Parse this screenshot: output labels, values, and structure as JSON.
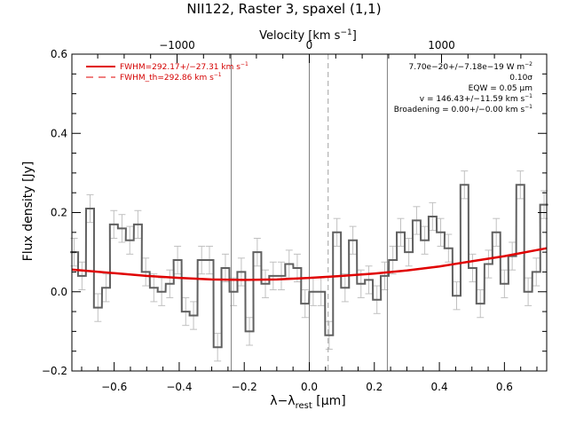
{
  "chart_data": {
    "type": "line",
    "title": "NII122, Raster 3, spaxel (1,1)",
    "xlabel": "λ−λ_rest [μm]",
    "xlabel_main": "λ−λ",
    "xlabel_sub": "rest",
    "xlabel_unit": " [μm]",
    "ylabel": "Flux density [Jy]",
    "top_xlabel": "Velocity [km s⁻¹]",
    "top_xlabel_main": "Velocity [km s",
    "top_xlabel_exp": "−1",
    "top_xlabel_end": "]",
    "xlim": [
      -0.73,
      0.73
    ],
    "ylim": [
      -0.2,
      0.6
    ],
    "xticks": [
      -0.6,
      -0.4,
      -0.2,
      0.0,
      0.2,
      0.4,
      0.6
    ],
    "xticklabels": [
      "−0.6",
      "−0.4",
      "−0.2",
      "0.0",
      "0.2",
      "0.4",
      "0.6"
    ],
    "yticks": [
      -0.2,
      0.0,
      0.2,
      0.4,
      0.6
    ],
    "yticklabels": [
      "−0.2",
      "0.0",
      "0.2",
      "0.4",
      "0.6"
    ],
    "top_ticks": [
      -1000,
      0,
      1000
    ],
    "top_ticklabels": [
      "−1000",
      "0",
      "1000"
    ],
    "top_axis_wavelength": 121.9,
    "grid": false,
    "legend_position": "top-left",
    "annotation_position": "top-right",
    "colors": {
      "data": "#606060",
      "errorbars": "#c0c0c0",
      "fit": "#e00000",
      "vlines": "#808080",
      "text_red": "#d40000"
    },
    "legend": [
      {
        "label": "FWHM=292.17+/−27.31 km s⁻¹",
        "main": "FWHM=292.17+/−27.31 km s",
        "exp": "−1",
        "style": "solid"
      },
      {
        "label": "FWHM_th=292.86 km s⁻¹",
        "main": "FWHM_th=292.86 km s",
        "exp": "−1",
        "style": "dashed"
      }
    ],
    "annotations": [
      {
        "main": "7.70e−20+/−7.18e−19 W m",
        "exp": "−2"
      },
      {
        "main": "0.10σ",
        "exp": ""
      },
      {
        "main": "EQW = 0.05 μm",
        "exp": ""
      },
      {
        "main": "v = 146.43+/−11.59 km s",
        "exp": "−1"
      },
      {
        "main": "Broadening = 0.00+/−0.00 km s",
        "exp": "−1"
      }
    ],
    "vlines": [
      {
        "x": -0.24,
        "style": "solid"
      },
      {
        "x": 0.0,
        "style": "solid"
      },
      {
        "x": 0.058,
        "style": "dashed"
      },
      {
        "x": 0.24,
        "style": "solid"
      }
    ],
    "series": [
      {
        "name": "data",
        "kind": "histogram-step",
        "bin_width": 0.0245,
        "x": [
          -0.723,
          -0.699,
          -0.674,
          -0.65,
          -0.625,
          -0.601,
          -0.576,
          -0.552,
          -0.527,
          -0.503,
          -0.478,
          -0.454,
          -0.429,
          -0.405,
          -0.38,
          -0.356,
          -0.331,
          -0.307,
          -0.282,
          -0.258,
          -0.233,
          -0.209,
          -0.184,
          -0.16,
          -0.135,
          -0.111,
          -0.086,
          -0.062,
          -0.037,
          -0.013,
          0.012,
          0.036,
          0.061,
          0.085,
          0.11,
          0.134,
          0.159,
          0.183,
          0.208,
          0.232,
          0.257,
          0.281,
          0.306,
          0.33,
          0.355,
          0.379,
          0.404,
          0.428,
          0.453,
          0.477,
          0.502,
          0.526,
          0.551,
          0.575,
          0.6,
          0.624,
          0.649,
          0.673,
          0.698,
          0.722
        ],
        "y": [
          0.1,
          0.04,
          0.21,
          -0.04,
          0.01,
          0.17,
          0.16,
          0.13,
          0.17,
          0.05,
          0.01,
          0.0,
          0.02,
          0.08,
          -0.05,
          -0.06,
          0.08,
          0.08,
          -0.14,
          0.06,
          0.0,
          0.05,
          -0.1,
          0.1,
          0.02,
          0.04,
          0.04,
          0.07,
          0.06,
          -0.03,
          0.0,
          0.0,
          -0.11,
          0.15,
          0.01,
          0.13,
          0.02,
          0.03,
          -0.02,
          0.04,
          0.08,
          0.15,
          0.1,
          0.18,
          0.13,
          0.19,
          0.15,
          0.11,
          -0.01,
          0.27,
          0.06,
          -0.03,
          0.07,
          0.15,
          0.02,
          0.09,
          0.27,
          0.0,
          0.05,
          0.22
        ],
        "err": 0.035
      },
      {
        "name": "fit",
        "kind": "line",
        "x": [
          -0.73,
          -0.6,
          -0.5,
          -0.4,
          -0.3,
          -0.2,
          -0.1,
          0.0,
          0.1,
          0.2,
          0.3,
          0.4,
          0.5,
          0.6,
          0.73
        ],
        "y": [
          0.056,
          0.047,
          0.04,
          0.035,
          0.031,
          0.03,
          0.031,
          0.035,
          0.04,
          0.046,
          0.054,
          0.064,
          0.077,
          0.09,
          0.11
        ]
      }
    ]
  }
}
